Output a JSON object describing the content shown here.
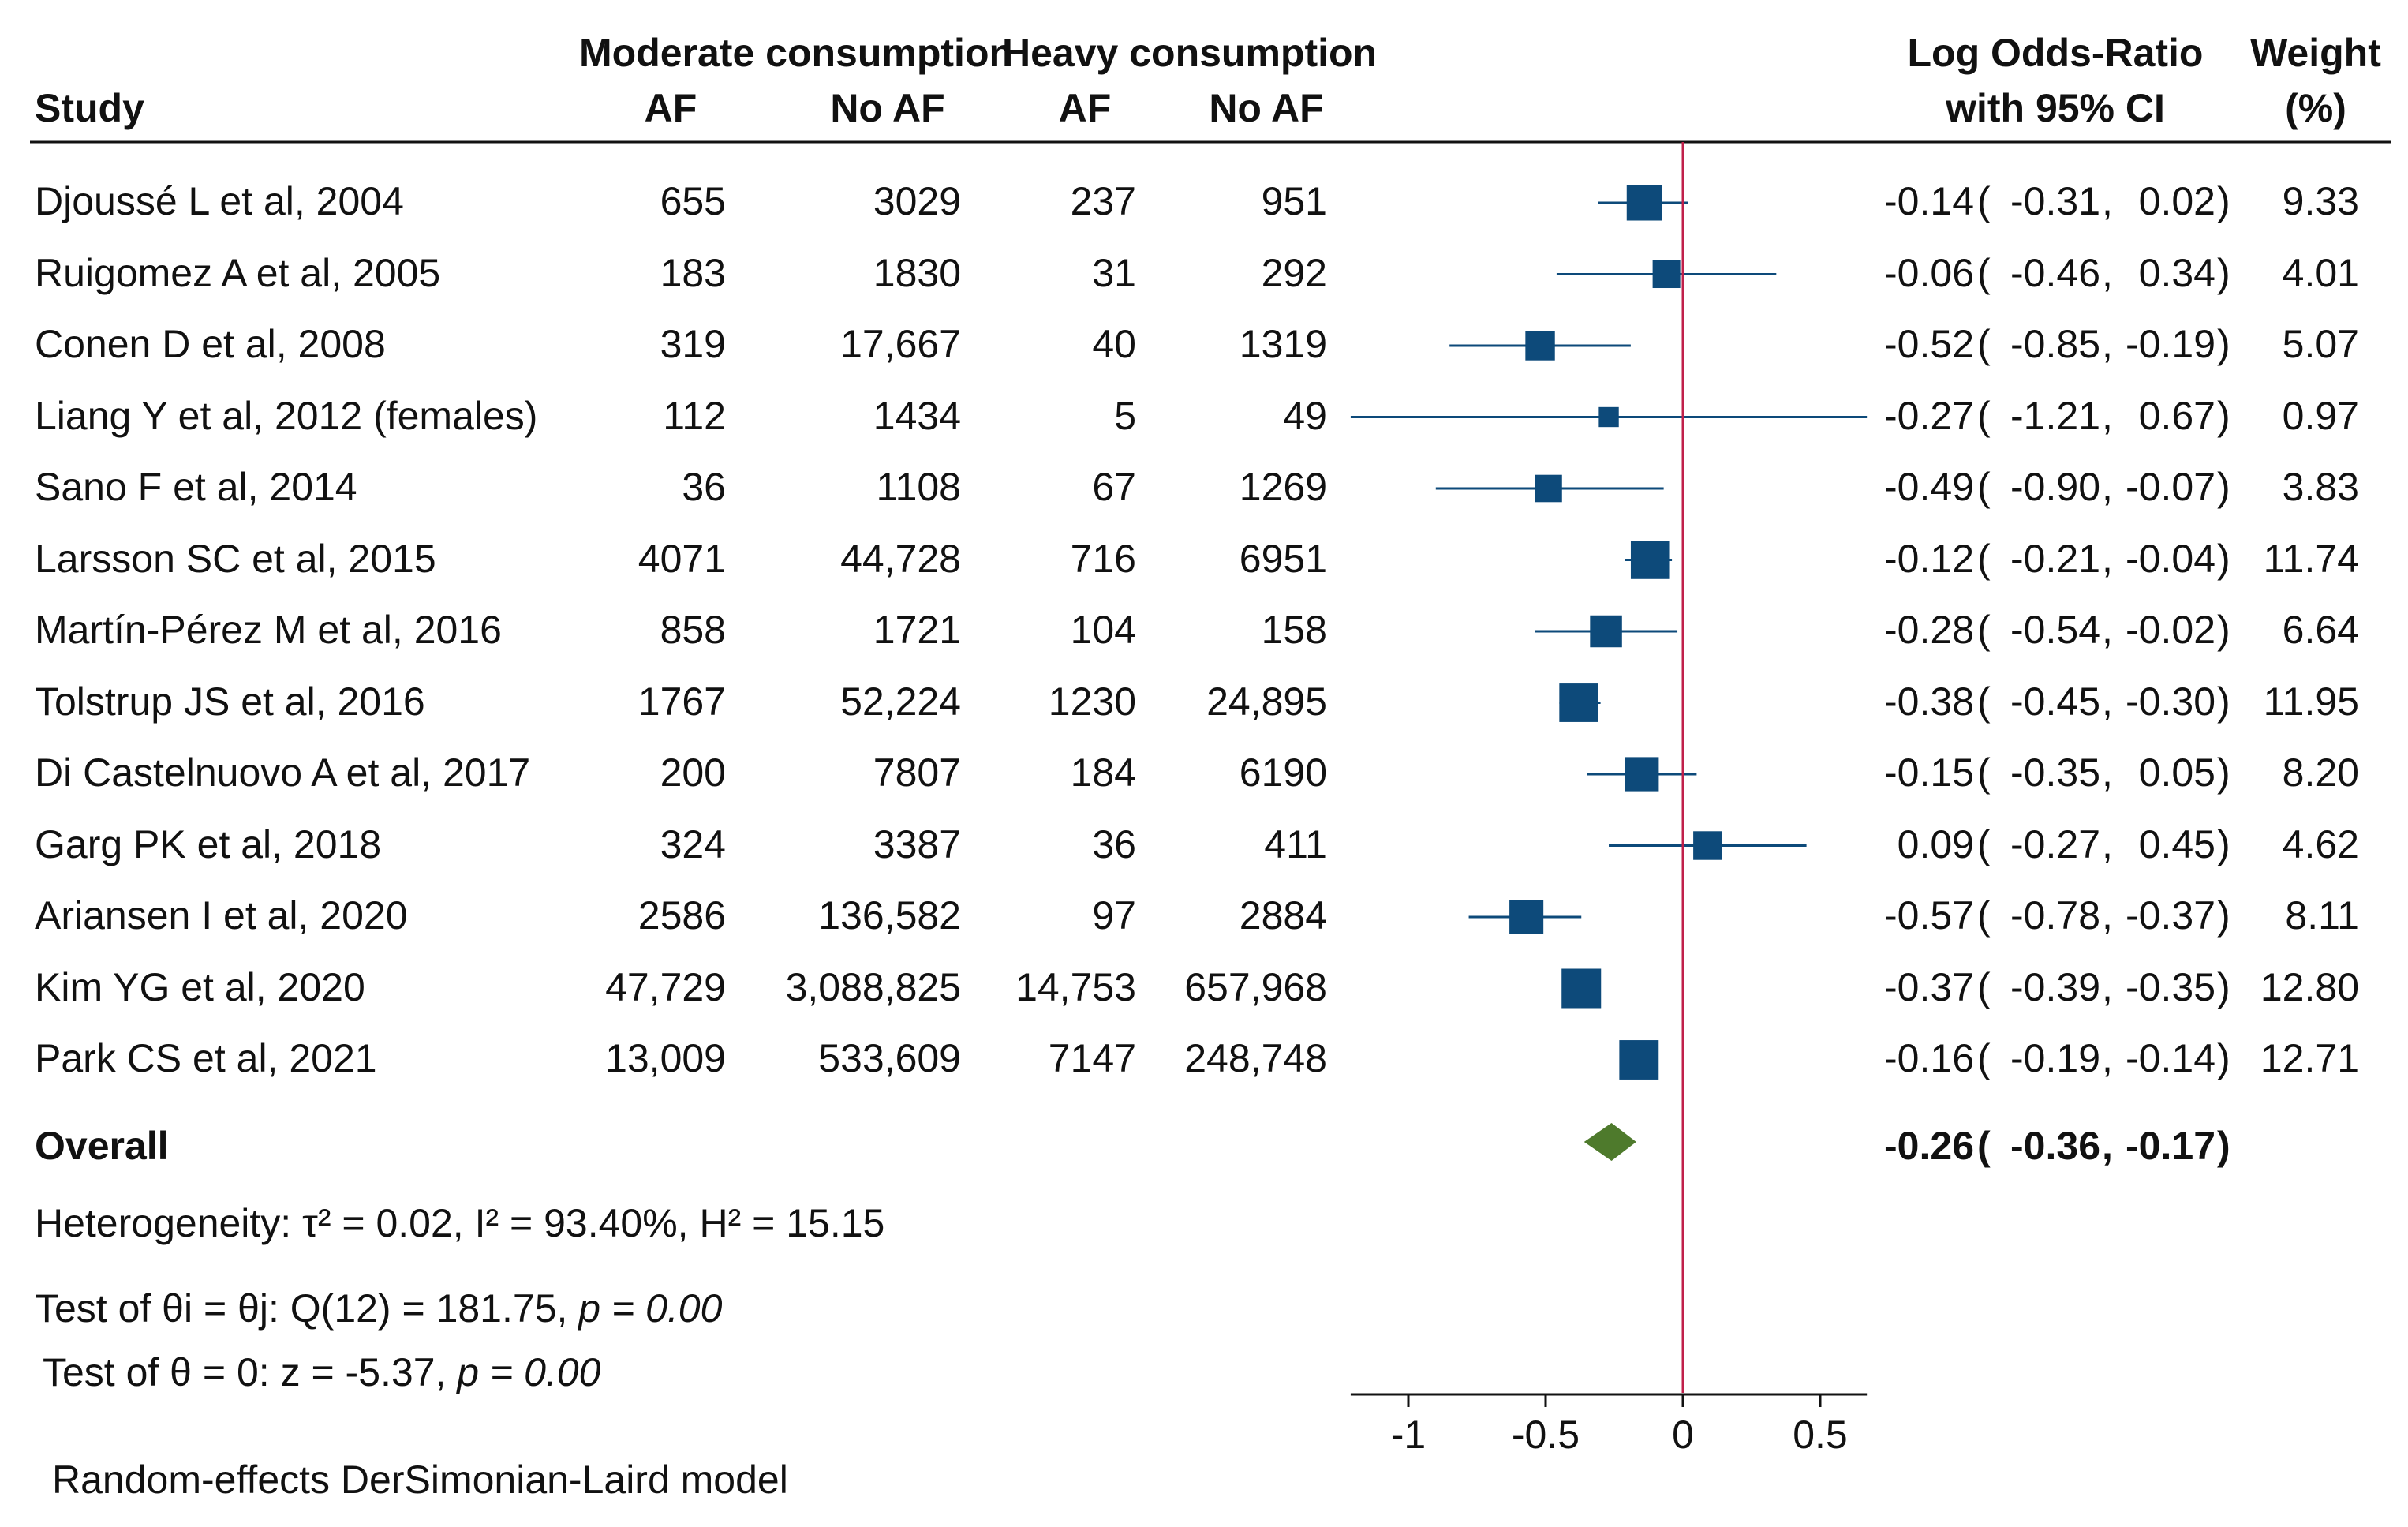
{
  "headers": {
    "study": "Study",
    "group_moderate": "Moderate consumption",
    "group_heavy": "Heavy consumption",
    "mod_af": "AF",
    "mod_noaf": "No AF",
    "heavy_af": "AF",
    "heavy_noaf": "No AF",
    "effect_line1": "Log Odds-Ratio",
    "effect_line2": "with 95% CI",
    "weight_line1": "Weight",
    "weight_line2": "(%)"
  },
  "studies": [
    {
      "name": "Djoussé L et al, 2004",
      "mod_af": "655",
      "mod_noaf": "3029",
      "heavy_af": "237",
      "heavy_noaf": "951",
      "est": "-0.14",
      "lo": "-0.31",
      "hi": "0.02",
      "weight": "9.33"
    },
    {
      "name": "Ruigomez A et al, 2005",
      "mod_af": "183",
      "mod_noaf": "1830",
      "heavy_af": "31",
      "heavy_noaf": "292",
      "est": "-0.06",
      "lo": "-0.46",
      "hi": "0.34",
      "weight": "4.01"
    },
    {
      "name": "Conen D et al, 2008",
      "mod_af": "319",
      "mod_noaf": "17,667",
      "heavy_af": "40",
      "heavy_noaf": "1319",
      "est": "-0.52",
      "lo": "-0.85",
      "hi": "-0.19",
      "weight": "5.07"
    },
    {
      "name": "Liang Y et al, 2012 (females)",
      "mod_af": "112",
      "mod_noaf": "1434",
      "heavy_af": "5",
      "heavy_noaf": "49",
      "est": "-0.27",
      "lo": "-1.21",
      "hi": "0.67",
      "weight": "0.97"
    },
    {
      "name": "Sano F et al, 2014",
      "mod_af": "36",
      "mod_noaf": "1108",
      "heavy_af": "67",
      "heavy_noaf": "1269",
      "est": "-0.49",
      "lo": "-0.90",
      "hi": "-0.07",
      "weight": "3.83"
    },
    {
      "name": "Larsson SC et al, 2015",
      "mod_af": "4071",
      "mod_noaf": "44,728",
      "heavy_af": "716",
      "heavy_noaf": "6951",
      "est": "-0.12",
      "lo": "-0.21",
      "hi": "-0.04",
      "weight": "11.74"
    },
    {
      "name": "Martín-Pérez M et al, 2016",
      "mod_af": "858",
      "mod_noaf": "1721",
      "heavy_af": "104",
      "heavy_noaf": "158",
      "est": "-0.28",
      "lo": "-0.54",
      "hi": "-0.02",
      "weight": "6.64"
    },
    {
      "name": "Tolstrup JS et al, 2016",
      "mod_af": "1767",
      "mod_noaf": "52,224",
      "heavy_af": "1230",
      "heavy_noaf": "24,895",
      "est": "-0.38",
      "lo": "-0.45",
      "hi": "-0.30",
      "weight": "11.95"
    },
    {
      "name": "Di Castelnuovo A et al, 2017",
      "mod_af": "200",
      "mod_noaf": "7807",
      "heavy_af": "184",
      "heavy_noaf": "6190",
      "est": "-0.15",
      "lo": "-0.35",
      "hi": "0.05",
      "weight": "8.20"
    },
    {
      "name": "Garg PK et al, 2018",
      "mod_af": "324",
      "mod_noaf": "3387",
      "heavy_af": "36",
      "heavy_noaf": "411",
      "est": "0.09",
      "lo": "-0.27",
      "hi": "0.45",
      "weight": "4.62"
    },
    {
      "name": "Ariansen I et al, 2020",
      "mod_af": "2586",
      "mod_noaf": "136,582",
      "heavy_af": "97",
      "heavy_noaf": "2884",
      "est": "-0.57",
      "lo": "-0.78",
      "hi": "-0.37",
      "weight": "8.11"
    },
    {
      "name": "Kim YG et al, 2020",
      "mod_af": "47,729",
      "mod_noaf": "3,088,825",
      "heavy_af": "14,753",
      "heavy_noaf": "657,968",
      "est": "-0.37",
      "lo": "-0.39",
      "hi": "-0.35",
      "weight": "12.80"
    },
    {
      "name": "Park CS et al, 2021",
      "mod_af": "13,009",
      "mod_noaf": "533,609",
      "heavy_af": "7147",
      "heavy_noaf": "248,748",
      "est": "-0.16",
      "lo": "-0.19",
      "hi": "-0.14",
      "weight": "12.71"
    }
  ],
  "overall": {
    "label": "Overall",
    "est": "-0.26",
    "lo": "-0.36",
    "hi": "-0.17"
  },
  "stats": {
    "heterogeneity": "Heterogeneity: τ² = 0.02, I² = 93.40%, H² = 15.15",
    "test_homog_prefix": "Test of θi = θj: Q(12) = 181.75, ",
    "test_homog_p": "p = 0.00",
    "test_effect_prefix": "Test of θ = 0: z = -5.37, ",
    "test_effect_p": "p = 0.00",
    "model": "Random-effects DerSimonian-Laird model"
  },
  "colors": {
    "marker": "#0d4a7a",
    "ci": "#0d4a7a",
    "diamond": "#4e7a2c",
    "refline": "#c0204a",
    "axis": "#111111"
  },
  "chart_data": {
    "type": "forest",
    "title": "",
    "xlabel": "",
    "xlim": [
      -1.21,
      0.67
    ],
    "xticks": [
      -1,
      -0.5,
      0,
      0.5
    ],
    "xtick_labels": [
      "-1",
      "-0.5",
      "0",
      "0.5"
    ],
    "reference_line": 0,
    "series": [
      {
        "name": "Log Odds-Ratio with 95% CI",
        "labels": [
          "Djoussé L et al, 2004",
          "Ruigomez A et al, 2005",
          "Conen D et al, 2008",
          "Liang Y et al, 2012 (females)",
          "Sano F et al, 2014",
          "Larsson SC et al, 2015",
          "Martín-Pérez M et al, 2016",
          "Tolstrup JS et al, 2016",
          "Di Castelnuovo A et al, 2017",
          "Garg PK et al, 2018",
          "Ariansen I et al, 2020",
          "Kim YG et al, 2020",
          "Park CS et al, 2021"
        ],
        "values": [
          -0.14,
          -0.06,
          -0.52,
          -0.27,
          -0.49,
          -0.12,
          -0.28,
          -0.38,
          -0.15,
          0.09,
          -0.57,
          -0.37,
          -0.16
        ],
        "lower": [
          -0.31,
          -0.46,
          -0.85,
          -1.21,
          -0.9,
          -0.21,
          -0.54,
          -0.45,
          -0.35,
          -0.27,
          -0.78,
          -0.39,
          -0.19
        ],
        "upper": [
          0.02,
          0.34,
          -0.19,
          0.67,
          -0.07,
          -0.04,
          -0.02,
          -0.3,
          0.05,
          0.45,
          -0.37,
          -0.35,
          -0.14
        ],
        "weights": [
          9.33,
          4.01,
          5.07,
          0.97,
          3.83,
          11.74,
          6.64,
          11.95,
          8.2,
          4.62,
          8.11,
          12.8,
          12.71
        ]
      }
    ],
    "overall": {
      "value": -0.26,
      "lower": -0.36,
      "upper": -0.17
    }
  }
}
